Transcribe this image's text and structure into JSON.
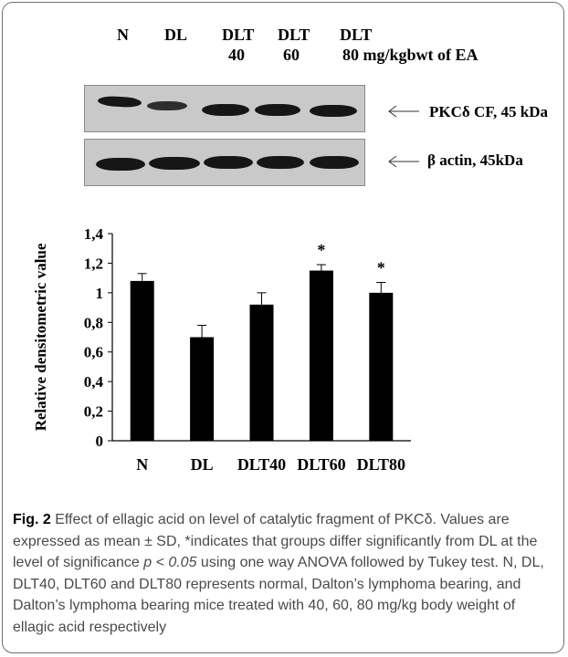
{
  "lanes": {
    "n": "N",
    "dl": "DL",
    "dlt40_top": "DLT",
    "dlt40_bottom": "40",
    "dlt60_top": "DLT",
    "dlt60_bottom": "60",
    "dlt80_top": "DLT",
    "dlt80_bottom": "80 mg/kgbwt of EA"
  },
  "blots": {
    "pkc_label": "PKCδ CF, 45 kDa",
    "actin_label": "β actin, 45kDa",
    "band_color": "#161616",
    "membrane_color": "#c9c9c9"
  },
  "chart_data": {
    "type": "bar",
    "categories": [
      "N",
      "DL",
      "DLT40",
      "DLT60",
      "DLT80"
    ],
    "values": [
      1.08,
      0.7,
      0.92,
      1.15,
      1.0
    ],
    "errors": [
      0.05,
      0.08,
      0.08,
      0.04,
      0.07
    ],
    "significance": [
      "",
      "",
      "",
      "*",
      "*"
    ],
    "ylabel": "Relative densitometric value",
    "ylim": [
      0,
      1.4
    ],
    "yticks": [
      "0",
      "0,2",
      "0,4",
      "0,6",
      "0,8",
      "1",
      "1,2",
      "1,4"
    ],
    "bar_color": "#000000",
    "grid": false
  },
  "caption": {
    "fig_label": "Fig. 2",
    "text_1": " Effect of ellagic acid on level of catalytic fragment of PKCδ. Values are expressed as mean ± SD, *indicates that groups differ significantly from DL at the level of significance ",
    "p_expr": "p < 0.05",
    "text_2": " using one way ANOVA followed by Tukey test. N, DL, DLT40, DLT60 and DLT80 represents normal, Dalton’s lymphoma bearing, and Dalton’s lymphoma bearing mice treated with 40, 60, 80 mg/kg body weight of ellagic acid respectively"
  }
}
